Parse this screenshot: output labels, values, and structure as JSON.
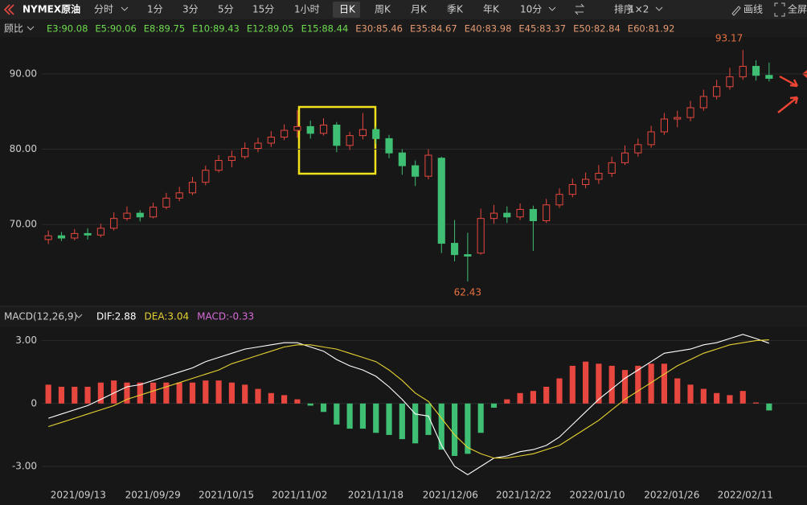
{
  "toolbar": {
    "symbol": "NYMEX原油",
    "periods": [
      "分时",
      "1分",
      "3分",
      "5分",
      "15分",
      "1小时",
      "日K",
      "周K",
      "月K",
      "季K",
      "年K",
      "10分"
    ],
    "active": 6,
    "sort": "排序",
    "layout": "1×2",
    "draw": "画线",
    "fullscreen": "全屏"
  },
  "chart_data": [
    {
      "type": "candlestick",
      "adjust": "顾比",
      "ma_legend": [
        {
          "label": "E3:90.08",
          "color": "#6fdc4f"
        },
        {
          "label": "E5:90.06",
          "color": "#6fdc4f"
        },
        {
          "label": "E8:89.75",
          "color": "#6fdc4f"
        },
        {
          "label": "E10:89.43",
          "color": "#6fdc4f"
        },
        {
          "label": "E12:89.05",
          "color": "#6fdc4f"
        },
        {
          "label": "E15:88.44",
          "color": "#6fdc4f"
        },
        {
          "label": "E30:85.46",
          "color": "#e59a72"
        },
        {
          "label": "E35:84.67",
          "color": "#e59a72"
        },
        {
          "label": "E40:83.98",
          "color": "#e59a72"
        },
        {
          "label": "E45:83.37",
          "color": "#e59a72"
        },
        {
          "label": "E50:82.84",
          "color": "#e59a72"
        },
        {
          "label": "E60:81.92",
          "color": "#e59a72"
        }
      ],
      "up_color": "#e8473f",
      "down_color": "#3fbf74",
      "candles": [
        [
          68.0,
          69.2,
          67.4,
          68.5
        ],
        [
          68.5,
          69.0,
          67.8,
          68.2
        ],
        [
          68.2,
          69.4,
          67.9,
          68.8
        ],
        [
          68.8,
          69.5,
          68.0,
          68.6
        ],
        [
          68.6,
          70.1,
          68.3,
          69.5
        ],
        [
          69.5,
          71.6,
          69.2,
          70.8
        ],
        [
          70.8,
          72.4,
          70.5,
          71.5
        ],
        [
          71.5,
          71.9,
          70.4,
          71.0
        ],
        [
          71.0,
          72.9,
          70.8,
          72.3
        ],
        [
          72.3,
          74.2,
          72.0,
          73.5
        ],
        [
          73.5,
          75.0,
          73.1,
          74.2
        ],
        [
          74.2,
          76.3,
          73.9,
          75.6
        ],
        [
          75.6,
          77.8,
          75.2,
          77.2
        ],
        [
          77.2,
          79.2,
          76.9,
          78.5
        ],
        [
          78.5,
          79.8,
          77.6,
          79.0
        ],
        [
          79.0,
          80.9,
          78.7,
          80.1
        ],
        [
          80.1,
          81.5,
          79.6,
          80.8
        ],
        [
          80.8,
          82.4,
          80.3,
          81.6
        ],
        [
          81.6,
          83.3,
          81.2,
          82.5
        ],
        [
          82.5,
          85.2,
          81.5,
          83.0
        ],
        [
          83.0,
          83.8,
          81.4,
          82.1
        ],
        [
          82.1,
          84.1,
          81.8,
          83.2
        ],
        [
          83.2,
          83.6,
          79.6,
          80.5
        ],
        [
          80.5,
          82.3,
          79.9,
          81.8
        ],
        [
          81.8,
          84.8,
          81.3,
          82.6
        ],
        [
          82.6,
          83.0,
          80.7,
          81.4
        ],
        [
          81.4,
          81.9,
          78.8,
          79.5
        ],
        [
          79.5,
          80.0,
          76.6,
          77.8
        ],
        [
          77.8,
          78.5,
          75.1,
          76.4
        ],
        [
          76.4,
          80.0,
          76.0,
          79.2
        ],
        [
          78.8,
          79.0,
          66.2,
          67.5
        ],
        [
          67.5,
          70.6,
          65.1,
          66.0
        ],
        [
          66.0,
          68.9,
          62.43,
          65.8
        ],
        [
          66.2,
          72.1,
          66.0,
          70.8
        ],
        [
          70.8,
          72.6,
          70.1,
          71.5
        ],
        [
          71.5,
          72.4,
          70.2,
          71.0
        ],
        [
          71.0,
          72.8,
          70.6,
          72.0
        ],
        [
          72.0,
          72.5,
          66.5,
          70.5
        ],
        [
          70.5,
          73.4,
          70.2,
          72.6
        ],
        [
          72.6,
          74.8,
          72.2,
          74.0
        ],
        [
          74.0,
          76.1,
          73.6,
          75.3
        ],
        [
          75.3,
          76.9,
          74.8,
          76.0
        ],
        [
          76.0,
          77.9,
          75.4,
          76.8
        ],
        [
          76.8,
          79.0,
          76.3,
          78.2
        ],
        [
          78.2,
          80.5,
          77.9,
          79.5
        ],
        [
          79.5,
          81.4,
          79.0,
          80.6
        ],
        [
          80.6,
          83.1,
          80.2,
          82.3
        ],
        [
          82.3,
          84.8,
          81.9,
          84.0
        ],
        [
          84.0,
          85.1,
          82.9,
          84.2
        ],
        [
          84.2,
          86.4,
          83.7,
          85.5
        ],
        [
          85.5,
          87.9,
          85.1,
          87.0
        ],
        [
          87.0,
          89.2,
          86.6,
          88.3
        ],
        [
          88.3,
          90.8,
          87.9,
          89.6
        ],
        [
          89.6,
          93.17,
          89.2,
          91.0
        ],
        [
          91.0,
          91.8,
          89.1,
          89.8
        ],
        [
          89.8,
          91.5,
          89.0,
          89.4
        ]
      ],
      "high_label": "93.17",
      "low_label": "62.43",
      "xlim": [
        -0.5,
        55.5
      ],
      "ylim": [
        60.3,
        95.0
      ],
      "yticks": [
        {
          "value": 70,
          "label": "70.00"
        },
        {
          "value": 80,
          "label": "80.00"
        },
        {
          "value": 90,
          "label": "90.00"
        }
      ],
      "grid": true
    },
    {
      "type": "macd",
      "title": "MACD(12,26,9)",
      "series": [
        {
          "name": "DIF:2.88",
          "color": "#ffffff",
          "values": [
            -0.7,
            -0.5,
            -0.3,
            -0.1,
            0.2,
            0.5,
            0.8,
            0.9,
            1.1,
            1.3,
            1.5,
            1.7,
            2.0,
            2.2,
            2.4,
            2.6,
            2.7,
            2.8,
            2.9,
            2.9,
            2.7,
            2.5,
            2.1,
            1.8,
            1.6,
            1.3,
            0.8,
            0.2,
            -0.5,
            -0.6,
            -2.0,
            -3.0,
            -3.4,
            -3.0,
            -2.6,
            -2.5,
            -2.3,
            -2.2,
            -2.0,
            -1.6,
            -1.0,
            -0.4,
            0.2,
            0.7,
            1.2,
            1.6,
            2.0,
            2.4,
            2.5,
            2.6,
            2.8,
            2.9,
            3.1,
            3.3,
            3.1,
            2.88
          ]
        },
        {
          "name": "DEA:3.04",
          "color": "#e6d232",
          "values": [
            -1.1,
            -0.9,
            -0.7,
            -0.5,
            -0.3,
            -0.1,
            0.2,
            0.4,
            0.6,
            0.8,
            1.0,
            1.2,
            1.4,
            1.6,
            1.9,
            2.1,
            2.3,
            2.5,
            2.7,
            2.8,
            2.8,
            2.7,
            2.6,
            2.4,
            2.2,
            2.0,
            1.6,
            1.1,
            0.5,
            0.1,
            -0.7,
            -1.5,
            -2.1,
            -2.4,
            -2.6,
            -2.6,
            -2.5,
            -2.4,
            -2.2,
            -2.0,
            -1.6,
            -1.2,
            -0.8,
            -0.3,
            0.2,
            0.6,
            1.0,
            1.4,
            1.8,
            2.1,
            2.4,
            2.6,
            2.8,
            2.9,
            3.0,
            3.04
          ]
        },
        {
          "name": "MACD:-0.33",
          "color": "#d86ad8",
          "values": [
            0.9,
            0.8,
            0.8,
            0.8,
            1.0,
            1.1,
            1.0,
            1.0,
            1.0,
            1.0,
            1.0,
            1.0,
            1.1,
            1.1,
            1.0,
            0.9,
            0.7,
            0.5,
            0.4,
            0.2,
            -0.1,
            -0.4,
            -1.0,
            -1.2,
            -1.2,
            -1.4,
            -1.5,
            -1.7,
            -1.9,
            -1.5,
            -2.2,
            -2.5,
            -2.4,
            -1.4,
            -0.2,
            0.2,
            0.5,
            0.6,
            0.8,
            1.2,
            1.8,
            2.0,
            1.9,
            1.8,
            1.6,
            1.8,
            1.9,
            1.9,
            1.2,
            0.9,
            0.7,
            0.5,
            0.4,
            0.6,
            0.05,
            -0.33
          ]
        }
      ],
      "up_color": "#e8473f",
      "down_color": "#3fbf74",
      "xlim": [
        -0.5,
        55.5
      ],
      "ylim": [
        -3.96,
        3.6
      ],
      "yticks": [
        {
          "value": -3,
          "label": "-3.00"
        },
        0,
        {
          "value": 3,
          "label": "3.00"
        }
      ],
      "xticks": [
        {
          "value": 4.4,
          "label": "2021/09/13"
        },
        {
          "value": 10.1,
          "label": "2021/09/29"
        },
        {
          "value": 15.7,
          "label": "2021/10/15"
        },
        {
          "value": 21.3,
          "label": "2021/11/02"
        },
        {
          "value": 27.1,
          "label": "2021/11/18"
        },
        {
          "value": 32.8,
          "label": "2021/12/06"
        },
        {
          "value": 38.4,
          "label": "2021/12/22"
        },
        {
          "value": 44.0,
          "label": "2022/01/10"
        },
        {
          "value": 49.7,
          "label": "2022/01/26"
        },
        {
          "value": 55.3,
          "label": "2022/02/11"
        }
      ]
    }
  ]
}
